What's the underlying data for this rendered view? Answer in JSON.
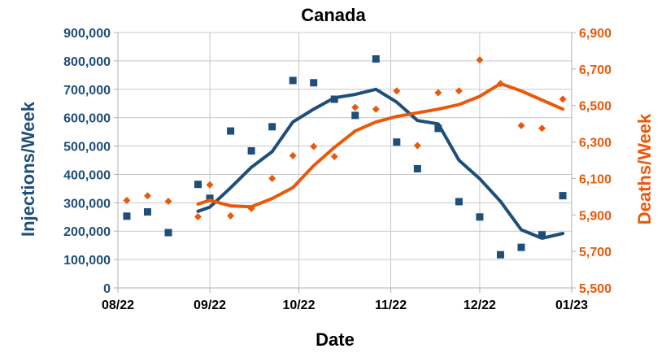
{
  "chart_data": {
    "type": "line",
    "title": "Canada",
    "xlabel": "Date",
    "ylabel_left": "Injections/Week",
    "ylabel_right": "Deaths/Week",
    "x_ticks": [
      "08/22",
      "09/22",
      "10/22",
      "11/22",
      "12/22",
      "01/23"
    ],
    "y_left_ticks": [
      "0",
      "100,000",
      "200,000",
      "300,000",
      "400,000",
      "500,000",
      "600,000",
      "700,000",
      "800,000",
      "900,000"
    ],
    "y_right_ticks": [
      "5,500",
      "5,700",
      "5,900",
      "6,100",
      "6,300",
      "6,500",
      "6,700",
      "6,900"
    ],
    "ylim_left": [
      0,
      900000
    ],
    "ylim_right": [
      5500,
      6900
    ],
    "xlim": [
      "2022-08-01",
      "2023-01-01"
    ],
    "grid": true,
    "colors": {
      "injections": "#1f4e79",
      "deaths": "#e8590c"
    },
    "series": [
      {
        "axis": "left",
        "style": "markers",
        "marker": "square",
        "points": [
          [
            "2022-08-04",
            253000
          ],
          [
            "2022-08-11",
            268000
          ],
          [
            "2022-08-18",
            195000
          ],
          [
            "2022-08-28",
            365000
          ],
          [
            "2022-09-01",
            316000
          ],
          [
            "2022-09-08",
            553000
          ],
          [
            "2022-09-15",
            483000
          ],
          [
            "2022-09-22",
            568000
          ],
          [
            "2022-09-29",
            731000
          ],
          [
            "2022-10-06",
            723000
          ],
          [
            "2022-10-13",
            665000
          ],
          [
            "2022-10-20",
            608000
          ],
          [
            "2022-10-27",
            807000
          ],
          [
            "2022-11-03",
            514000
          ],
          [
            "2022-11-10",
            420000
          ],
          [
            "2022-11-17",
            562000
          ],
          [
            "2022-11-24",
            304000
          ],
          [
            "2022-12-01",
            250000
          ],
          [
            "2022-12-08",
            117000
          ],
          [
            "2022-12-15",
            143000
          ],
          [
            "2022-12-22",
            187000
          ],
          [
            "2022-12-29",
            325000
          ]
        ]
      },
      {
        "axis": "left",
        "style": "line",
        "points": [
          [
            "2022-08-28",
            270000
          ],
          [
            "2022-09-01",
            285000
          ],
          [
            "2022-09-08",
            353000
          ],
          [
            "2022-09-15",
            425000
          ],
          [
            "2022-09-22",
            480000
          ],
          [
            "2022-09-29",
            585000
          ],
          [
            "2022-10-06",
            630000
          ],
          [
            "2022-10-13",
            670000
          ],
          [
            "2022-10-20",
            682000
          ],
          [
            "2022-10-27",
            700000
          ],
          [
            "2022-11-03",
            655000
          ],
          [
            "2022-11-10",
            590000
          ],
          [
            "2022-11-17",
            578000
          ],
          [
            "2022-11-24",
            450000
          ],
          [
            "2022-12-01",
            385000
          ],
          [
            "2022-12-08",
            305000
          ],
          [
            "2022-12-15",
            205000
          ],
          [
            "2022-12-22",
            175000
          ],
          [
            "2022-12-29",
            192000
          ]
        ]
      },
      {
        "axis": "right",
        "style": "markers",
        "marker": "diamond",
        "points": [
          [
            "2022-08-04",
            5980
          ],
          [
            "2022-08-11",
            6005
          ],
          [
            "2022-08-18",
            5975
          ],
          [
            "2022-08-28",
            5890
          ],
          [
            "2022-09-01",
            6065
          ],
          [
            "2022-09-08",
            5895
          ],
          [
            "2022-09-15",
            5935
          ],
          [
            "2022-09-22",
            6100
          ],
          [
            "2022-09-29",
            6225
          ],
          [
            "2022-10-06",
            6275
          ],
          [
            "2022-10-13",
            6220
          ],
          [
            "2022-10-20",
            6490
          ],
          [
            "2022-10-27",
            6480
          ],
          [
            "2022-11-03",
            6580
          ],
          [
            "2022-11-10",
            6280
          ],
          [
            "2022-11-17",
            6570
          ],
          [
            "2022-11-24",
            6580
          ],
          [
            "2022-12-01",
            6750
          ],
          [
            "2022-12-08",
            6620
          ],
          [
            "2022-12-15",
            6390
          ],
          [
            "2022-12-22",
            6375
          ],
          [
            "2022-12-29",
            6535
          ]
        ]
      },
      {
        "axis": "right",
        "style": "line",
        "points": [
          [
            "2022-08-28",
            5960
          ],
          [
            "2022-09-01",
            5980
          ],
          [
            "2022-09-08",
            5950
          ],
          [
            "2022-09-15",
            5945
          ],
          [
            "2022-09-22",
            5990
          ],
          [
            "2022-09-29",
            6050
          ],
          [
            "2022-10-06",
            6170
          ],
          [
            "2022-10-13",
            6270
          ],
          [
            "2022-10-20",
            6360
          ],
          [
            "2022-10-27",
            6410
          ],
          [
            "2022-11-03",
            6440
          ],
          [
            "2022-11-10",
            6460
          ],
          [
            "2022-11-17",
            6480
          ],
          [
            "2022-11-24",
            6505
          ],
          [
            "2022-12-01",
            6550
          ],
          [
            "2022-12-08",
            6620
          ],
          [
            "2022-12-15",
            6580
          ],
          [
            "2022-12-22",
            6530
          ],
          [
            "2022-12-29",
            6480
          ]
        ]
      }
    ]
  }
}
